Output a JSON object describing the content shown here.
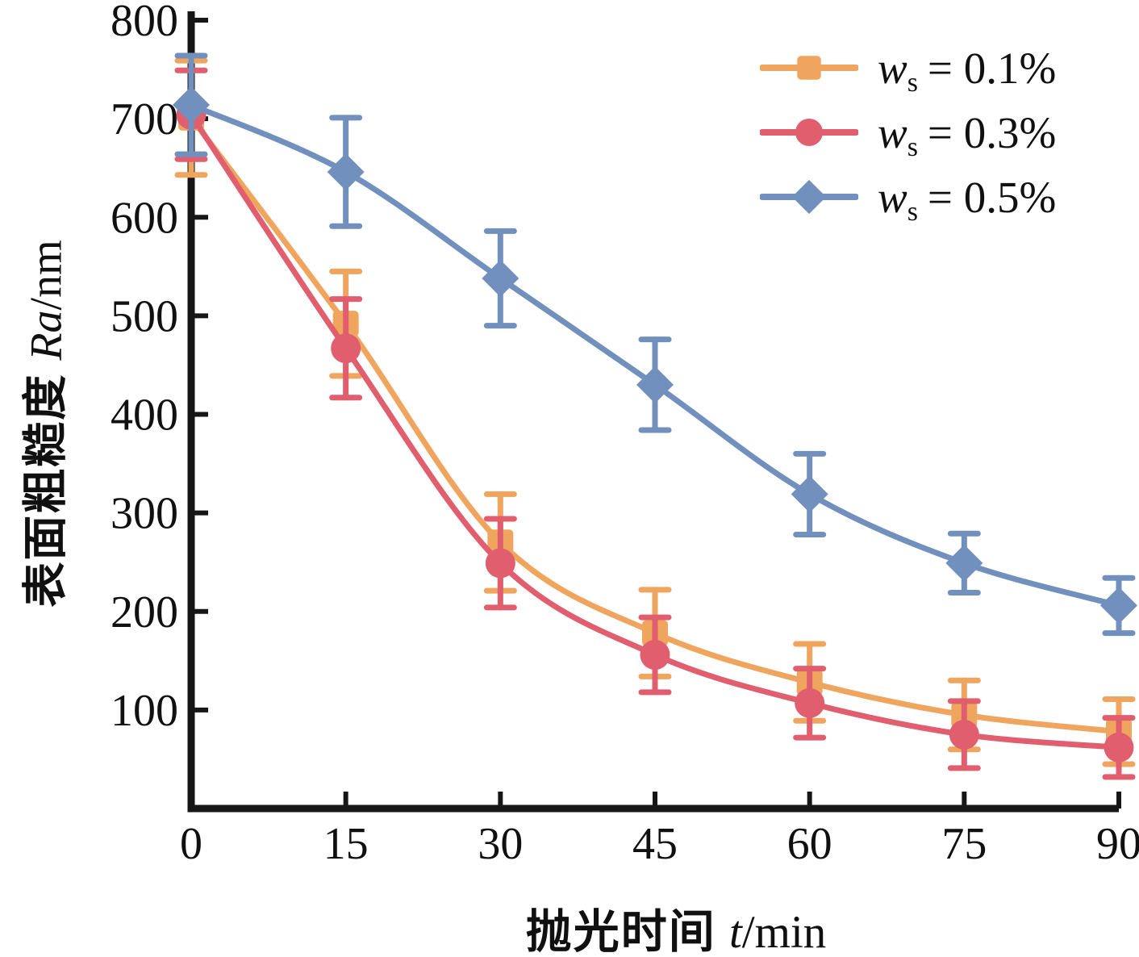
{
  "figure": {
    "background": "#ffffff",
    "axis_color": "#161616",
    "text_color": "#101010",
    "y_axis_label": {
      "prefix": "表面粗糙度 ",
      "symbol": "Ra",
      "suffix": "/nm"
    },
    "x_axis_label": {
      "prefix": "抛光时间 ",
      "symbol": "t",
      "suffix": "/min"
    }
  },
  "legend": {
    "position": "top-right",
    "items": [
      {
        "variable": "w",
        "subscript": "s",
        "value": "= 0.1%",
        "marker": "square-marker-icon"
      },
      {
        "variable": "w",
        "subscript": "s",
        "value": "= 0.3%",
        "marker": "circle-marker-icon"
      },
      {
        "variable": "w",
        "subscript": "s",
        "value": "= 0.5%",
        "marker": "diamond-marker-icon"
      }
    ]
  },
  "chart_data": {
    "type": "line",
    "title": "",
    "xlabel": "抛光时间 t/min",
    "ylabel": "表面粗糙度 Ra/nm",
    "xlim": [
      0,
      90
    ],
    "ylim": [
      0,
      800
    ],
    "x_ticks": [
      0,
      15,
      30,
      45,
      60,
      75,
      90
    ],
    "y_ticks": [
      100,
      200,
      300,
      400,
      500,
      600,
      700,
      800
    ],
    "grid": false,
    "error_bars": true,
    "legend_position": "top-right",
    "x": [
      0,
      15,
      30,
      45,
      60,
      75,
      90
    ],
    "series": [
      {
        "name": "ws = 0.1%",
        "marker": "square",
        "color": "#F0A55E",
        "values": [
          701,
          492,
          270,
          178,
          128,
          95,
          78
        ],
        "errors": [
          58,
          53,
          49,
          44,
          39,
          35,
          33
        ]
      },
      {
        "name": "ws = 0.3%",
        "marker": "circle",
        "color": "#E05E6D",
        "values": [
          704,
          467,
          249,
          156,
          107,
          75,
          62
        ],
        "errors": [
          45,
          50,
          45,
          38,
          35,
          34,
          30
        ]
      },
      {
        "name": "ws = 0.5%",
        "marker": "diamond",
        "color": "#7290BD",
        "values": [
          714,
          646,
          538,
          430,
          319,
          249,
          206
        ],
        "errors": [
          50,
          55,
          48,
          46,
          41,
          30,
          28
        ]
      }
    ]
  }
}
